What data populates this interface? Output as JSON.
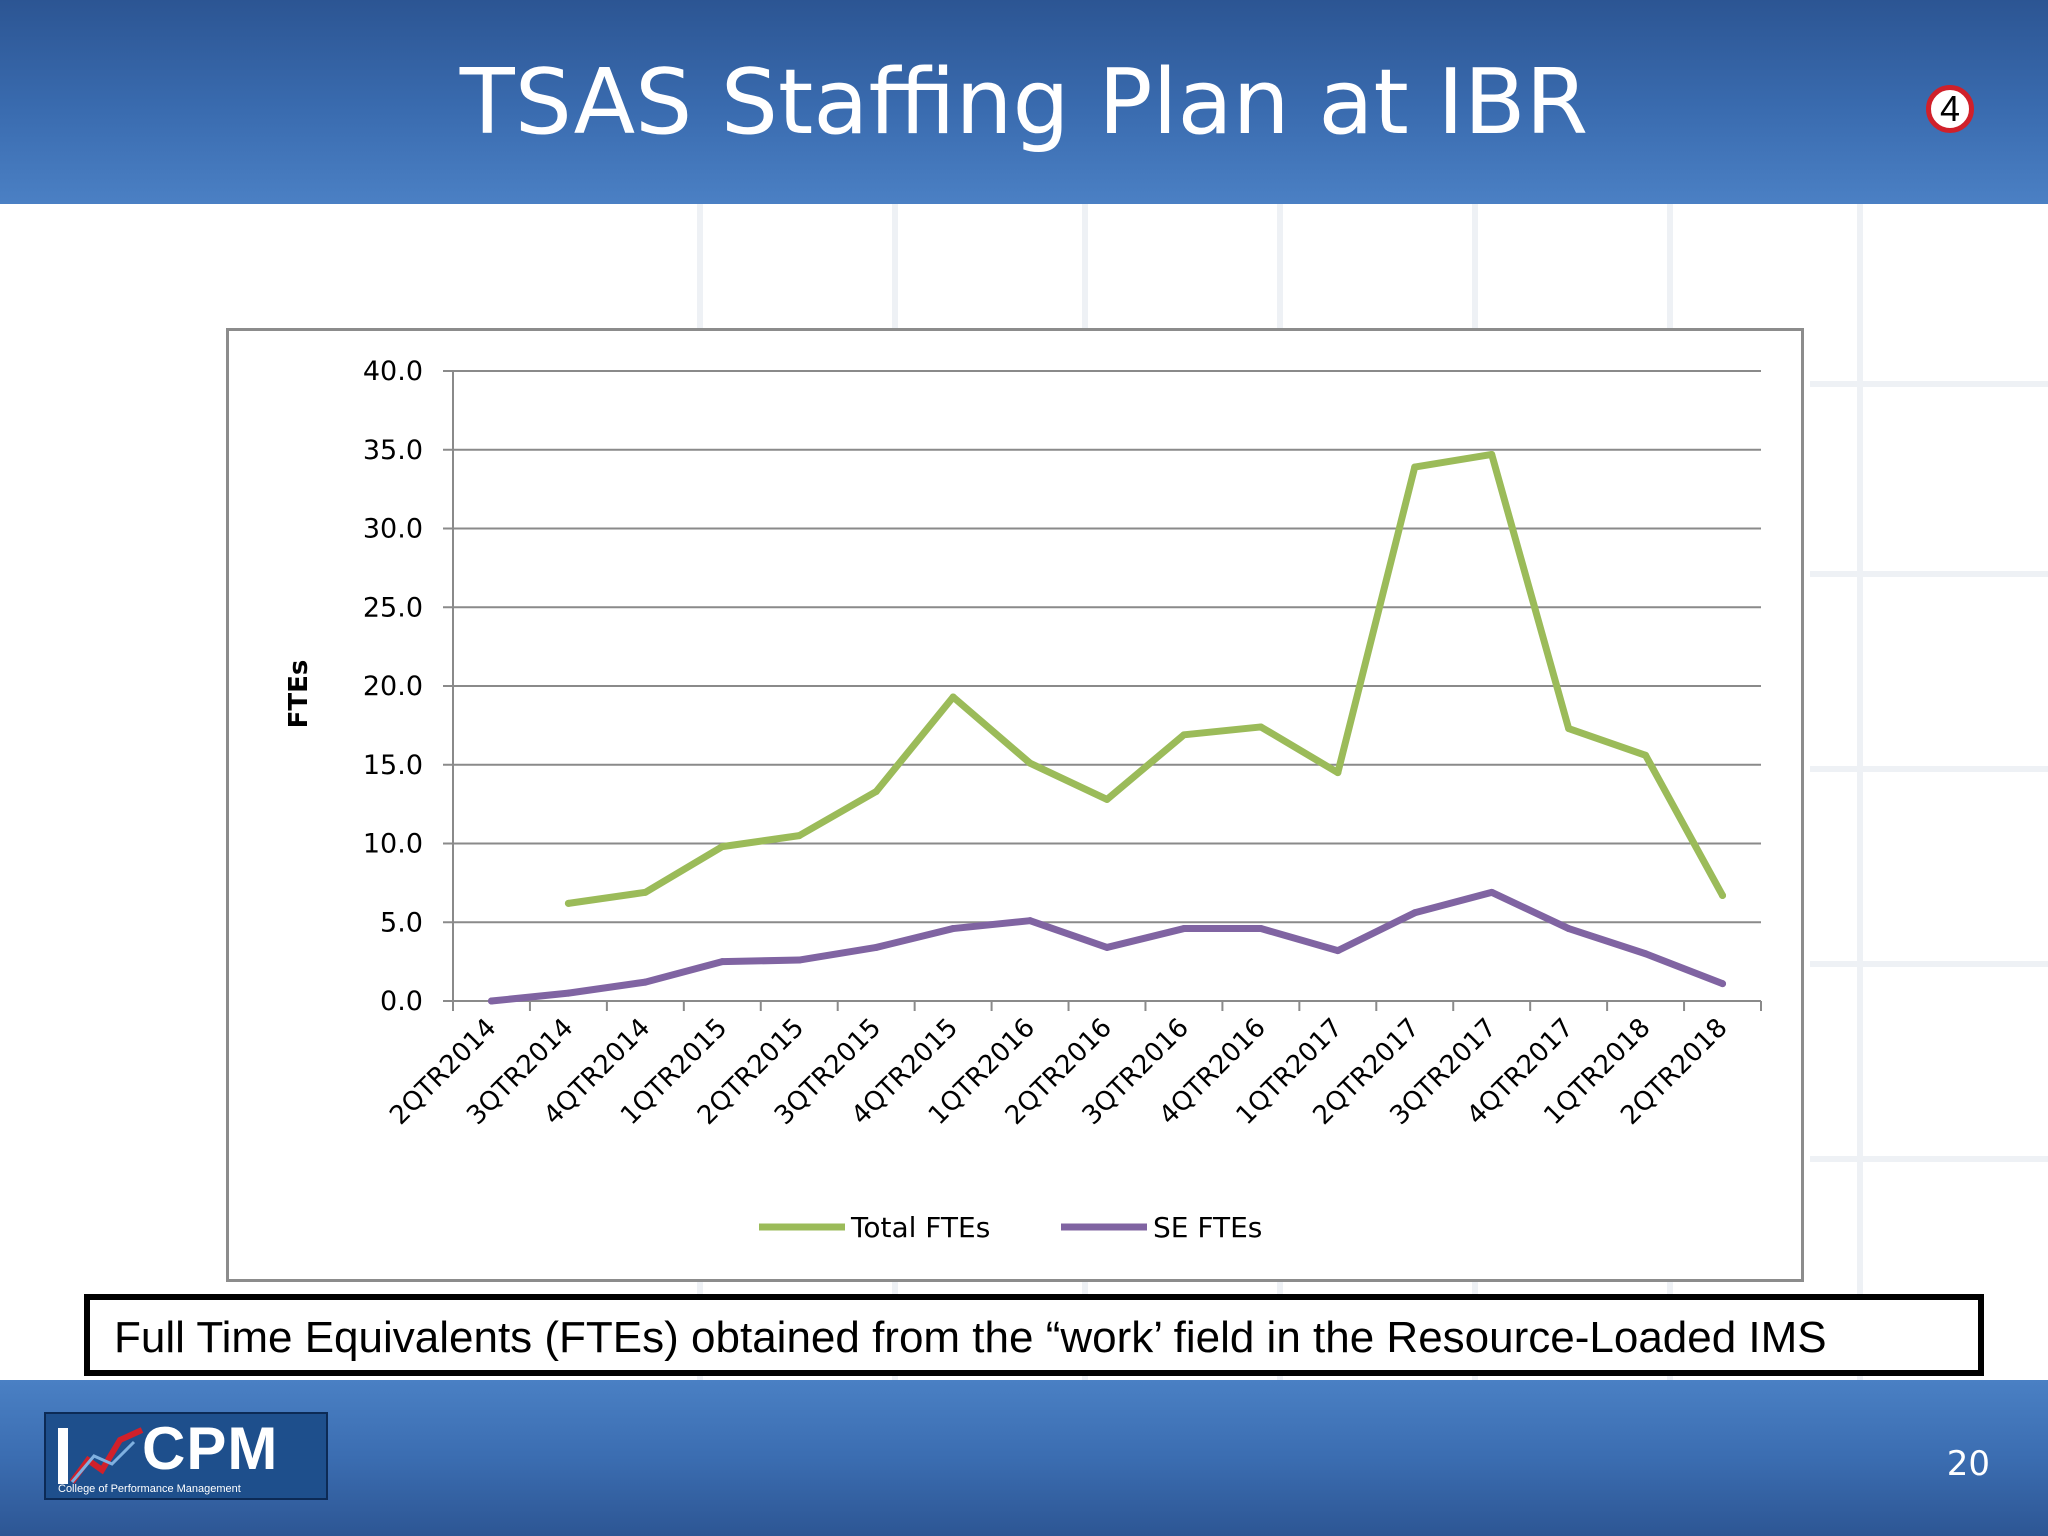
{
  "slide": {
    "title": "TSAS Staffing Plan at IBR",
    "badge": "4",
    "caption": "Full Time Equivalents (FTEs) obtained from the  “work’ field in the Resource-Loaded IMS",
    "page_number": "20",
    "logo": {
      "name": "CPM",
      "subtitle": "College of Performance Management"
    }
  },
  "colors": {
    "header_blue": "#3a6cb0",
    "total_series": "#9bbb59",
    "se_series": "#8064a2",
    "badge_ring": "#d0202a"
  },
  "chart_data": {
    "type": "line",
    "title": "",
    "xlabel": "",
    "ylabel": "FTEs",
    "ylim": [
      0,
      40
    ],
    "yticks": [
      "0.0",
      "5.0",
      "10.0",
      "15.0",
      "20.0",
      "25.0",
      "30.0",
      "35.0",
      "40.0"
    ],
    "categories": [
      "2QTR2014",
      "3QTR2014",
      "4QTR2014",
      "1QTR2015",
      "2QTR2015",
      "3QTR2015",
      "4QTR2015",
      "1QTR2016",
      "2QTR2016",
      "3QTR2016",
      "4QTR2016",
      "1QTR2017",
      "2QTR2017",
      "3QTR2017",
      "4QTR2017",
      "1QTR2018",
      "2QTR2018"
    ],
    "grid": true,
    "legend_position": "bottom",
    "series": [
      {
        "name": "Total FTEs",
        "color": "#9bbb59",
        "values": [
          null,
          6.2,
          6.9,
          9.8,
          10.5,
          13.3,
          19.3,
          15.1,
          12.8,
          16.9,
          17.4,
          14.5,
          33.9,
          34.7,
          17.3,
          15.6,
          6.7
        ]
      },
      {
        "name": "SE FTEs",
        "color": "#8064a2",
        "values": [
          0.0,
          0.5,
          1.2,
          2.5,
          2.6,
          3.4,
          4.6,
          5.1,
          3.4,
          4.6,
          4.6,
          3.2,
          5.6,
          6.9,
          4.6,
          3.0,
          1.1
        ]
      }
    ]
  }
}
